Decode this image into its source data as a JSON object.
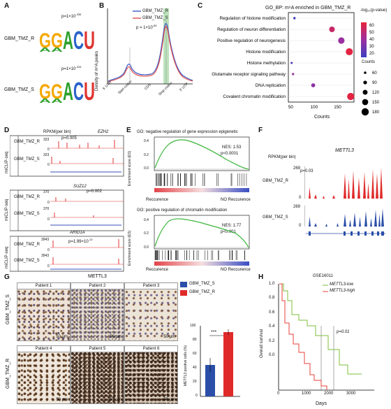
{
  "panels": {
    "A": "A",
    "B": "B",
    "C": "C",
    "D": "D",
    "E": "E",
    "F": "F",
    "G": "G",
    "H": "H"
  },
  "panelA": {
    "r_label": "GBM_TMZ_R",
    "r_p": "p=1×10",
    "r_exp": "-336",
    "s_label": "GBM_TMZ_S",
    "s_p": "p=1×10",
    "s_exp": "-316",
    "motif_letters": [
      "G",
      "G",
      "A",
      "C",
      "U"
    ],
    "colors": {
      "G": "#f5a800",
      "A": "#2ca02c",
      "C": "#2a62c9",
      "U": "#e0342f"
    }
  },
  "panelB": {
    "ylabel": "Density of m⁶A peaks",
    "legend": [
      "GBM_TMZ_R",
      "GBM_TMZ_S"
    ],
    "p": "p = 1×10",
    "p_exp": "-65",
    "xticks": [
      "5' UTR",
      "Start codon",
      "CDS",
      "Stop codon",
      "3' UTR"
    ],
    "colors": {
      "R": "#3a5bc7",
      "S": "#e05050",
      "band": "#9fd59f"
    }
  },
  "chart_data": {
    "type": "scatter",
    "title": "GO_BP: m⁶A enriched in GBM_TMZ_R",
    "xlabel": "Counts",
    "xticks": [
      50,
      100,
      150
    ],
    "xlim": [
      45,
      185
    ],
    "categories": [
      "Regulation of histone modification",
      "Regulation of neuron differentiation",
      "Positive regulation of neurogenesis",
      "Histone modification",
      "Histone methylation",
      "Glutamate receptor signaling pathway",
      "DNA replication",
      "Covalent chromatin modification"
    ],
    "counts": [
      58,
      138,
      158,
      175,
      52,
      55,
      98,
      178
    ],
    "neglog10p": [
      18,
      58,
      42,
      68,
      20,
      42,
      38,
      68
    ],
    "color_legend_title": "-log₁₀(p-value)",
    "color_ticks": [
      60,
      50,
      40,
      30,
      20
    ],
    "size_legend_title": "Counts",
    "size_ticks": [
      60,
      90,
      120,
      150,
      180
    ]
  },
  "panelD": {
    "rpkm": "RPKM(per bin)",
    "ylabel": "miCLIP-seq",
    "genes": [
      {
        "name": "EZH2",
        "p": "p=0.005",
        "max_r": "323",
        "max_s": "323",
        "zero": "0"
      },
      {
        "name": "SUZ12",
        "p": "p=0.002",
        "max_r": "370",
        "max_s": "370",
        "zero": "0"
      },
      {
        "name": "ARID1A",
        "p": "p=1.99×10",
        "p_exp": "-13",
        "max_r": "3943",
        "max_s": "3943",
        "zero": "0"
      }
    ],
    "r_label": "GBM_TMZ_R",
    "s_label": "GBM_TMZ_S"
  },
  "panelE": {
    "top_title": "GO: negative regulation of gene expression epigenetic",
    "top_nes": "NES: 1.53",
    "top_p": "p<0.0001",
    "bottom_title": "GO: positive regulation of chromatin modification",
    "bottom_nes": "NES: 1.77",
    "bottom_p": "p<0.001",
    "ylabel": "Enrichment score (ES)",
    "yticks_top": [
      "0.4",
      "0.2",
      "0.0"
    ],
    "yticks_bottom": [
      "0.4",
      "0.2",
      "0.0"
    ],
    "left": "Reccurence",
    "right": "NO Reccurence"
  },
  "panelF": {
    "rpkm": "RPKM(per bin)",
    "gene": "METTL3",
    "p": "p=0.03",
    "max_r": "269",
    "max_s": "269",
    "zero": "0",
    "r_label": "GBM_TMZ_R",
    "s_label": "GBM_TMZ_S"
  },
  "panelG": {
    "title": "METTL3",
    "row_s": "GBM_TMZ_S",
    "row_r": "GBM_TMZ_R",
    "patients": [
      "Patient 1",
      "Patient 2",
      "Patient 3",
      "Patient 4",
      "Patient 5",
      "Patient 6"
    ],
    "scale": "50 μm",
    "legend": [
      "GBM_TMZ_S",
      "GBM_TMZ_R"
    ],
    "bar_ylabel": "METTL3 positive cells (%)",
    "bar_yticks": [
      "100",
      "80",
      "60",
      "40",
      "20",
      "0"
    ],
    "bar_values": [
      45,
      92
    ],
    "sig": "***",
    "colors": {
      "S": "#2b4fa8",
      "R": "#e02a2a"
    }
  },
  "panelH": {
    "title": "GSE16011",
    "ylabel": "Overall survival",
    "xlabel": "Days",
    "yticks": [
      "1.0",
      "0.8",
      "0.6",
      "0.4",
      "0.2",
      "0.0"
    ],
    "xticks": [
      "0",
      "1000",
      "2000",
      "3000"
    ],
    "legend_low": "METTL3-low",
    "legend_high": "METTL3-high",
    "p": "p=0.01",
    "colors": {
      "low": "#7cbf3a",
      "high": "#e8423a"
    }
  }
}
